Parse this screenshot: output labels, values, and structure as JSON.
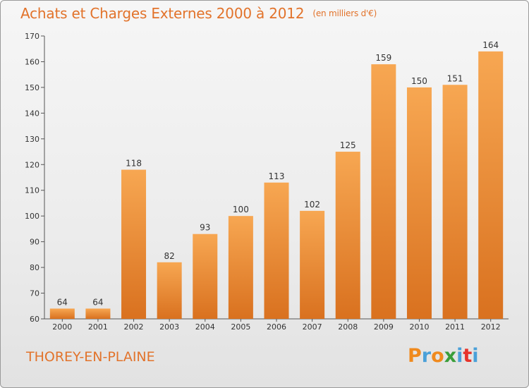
{
  "title": "Achats et Charges Externes 2000 à 2012",
  "unit": "(en milliers d'€)",
  "commune": "THOREY-EN-PLAINE",
  "logo": {
    "letters": [
      "P",
      "r",
      "o",
      "x",
      "i",
      "t",
      "i"
    ],
    "colors": [
      "#f08a1e",
      "#4aa0d8",
      "#f08a1e",
      "#3a9e3a",
      "#4aa0d8",
      "#e7342b",
      "#4aa0d8"
    ]
  },
  "colors": {
    "bar_light": "#f7a752",
    "bar_dark": "#d9711f",
    "title": "#e2732b"
  },
  "chart_data": {
    "type": "bar",
    "categories": [
      "2000",
      "2001",
      "2002",
      "2003",
      "2004",
      "2005",
      "2006",
      "2007",
      "2008",
      "2009",
      "2010",
      "2011",
      "2012"
    ],
    "values": [
      64,
      64,
      118,
      82,
      93,
      100,
      113,
      102,
      125,
      159,
      150,
      151,
      164
    ],
    "ylim": [
      60,
      170
    ],
    "yticks": [
      60,
      70,
      80,
      90,
      100,
      110,
      120,
      130,
      140,
      150,
      160,
      170
    ],
    "grid": false,
    "legend": "none"
  }
}
